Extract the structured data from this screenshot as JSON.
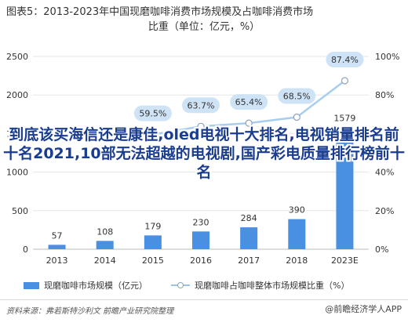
{
  "title": {
    "line1": "图表5：2013-2023年中国现磨咖啡消费市场规模及占咖啡消费市场",
    "line2": "比重（单位：亿元，%）"
  },
  "overlay_text": "到底该买海信还是康佳,oled电视十大排名,电视销量排名前十名2021,10部无法超越的电视剧,国产彩电质量排行榜前十名",
  "legend": {
    "bar_label": "现磨咖啡市场规模（亿元）",
    "line_label": "现磨咖啡占咖啡整体市场规模比重（%）"
  },
  "footer": {
    "source": "资料来源：弗若斯特沙利文 前瞻产业研究院整理",
    "brand": "@前瞻经济学人APP"
  },
  "colors": {
    "bar": "#4a90e2",
    "line": "#a8cdef",
    "label_bg": "#cfe3f6",
    "grid": "#e6e6e6"
  },
  "chart_data": {
    "type": "bar",
    "categories": [
      "2013",
      "2014",
      "2015",
      "2016",
      "2017",
      "2018",
      "2023E"
    ],
    "series": [
      {
        "name": "现磨咖啡市场规模（亿元）",
        "type": "bar",
        "axis": "left",
        "values": [
          57,
          108,
          179,
          230,
          284,
          390,
          1579
        ]
      },
      {
        "name": "现磨咖啡占咖啡整体市场规模比重（%）",
        "type": "line",
        "axis": "right",
        "values": [
          null,
          null,
          59.5,
          63.7,
          65.4,
          68.5,
          87.4
        ]
      }
    ],
    "bar_labels": [
      "57",
      "108",
      "179",
      "230",
      "284",
      "390",
      "1579"
    ],
    "line_labels": [
      "",
      "",
      "59.5%",
      "63.7%",
      "65.4%",
      "68.5%",
      "87.4%"
    ],
    "ylim_left": [
      0,
      2500
    ],
    "yticks_left": [
      "0",
      "500",
      "1000",
      "1500",
      "2000",
      "2500"
    ],
    "ylim_right": [
      0,
      100
    ],
    "yticks_right": [
      "0%",
      "20%",
      "40%",
      "60%",
      "80%",
      "100%"
    ],
    "grid": true,
    "legend": "bottom"
  }
}
